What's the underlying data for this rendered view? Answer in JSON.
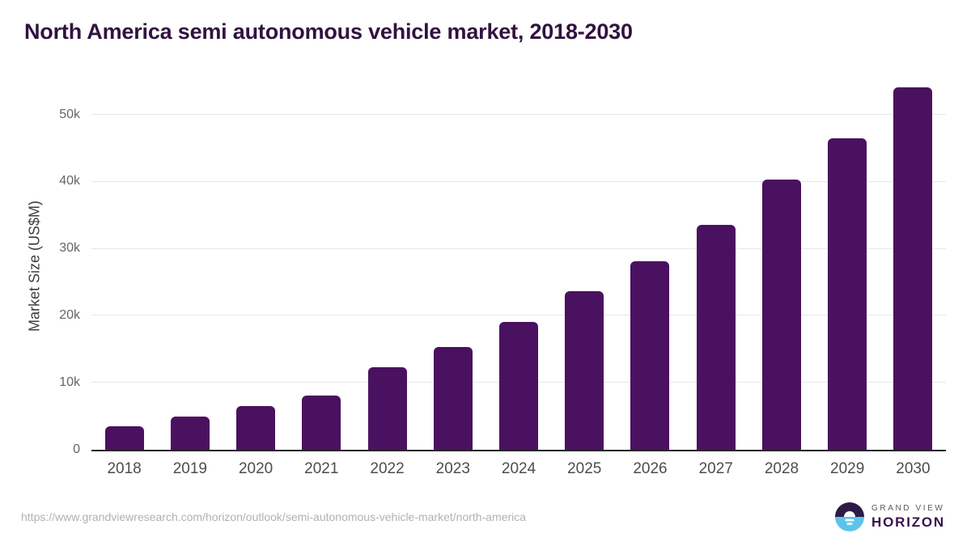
{
  "chart_data": {
    "type": "bar",
    "title": "North America semi autonomous vehicle market, 2018-2030",
    "ylabel": "Market Size (US$M)",
    "xlabel": "",
    "categories": [
      "2018",
      "2019",
      "2020",
      "2021",
      "2022",
      "2023",
      "2024",
      "2025",
      "2026",
      "2027",
      "2028",
      "2029",
      "2030"
    ],
    "values": [
      3500,
      4900,
      6500,
      8100,
      12300,
      15400,
      19100,
      23700,
      28200,
      33600,
      40300,
      46500,
      54100
    ],
    "ylim": [
      0,
      55000
    ],
    "yticks": [
      {
        "value": 0,
        "label": "0"
      },
      {
        "value": 10000,
        "label": "10k"
      },
      {
        "value": 20000,
        "label": "20k"
      },
      {
        "value": 30000,
        "label": "30k"
      },
      {
        "value": 40000,
        "label": "40k"
      },
      {
        "value": 50000,
        "label": "50k"
      }
    ],
    "grid": true,
    "legend_position": "none",
    "bar_color": "#4a1160"
  },
  "footer": {
    "source_url": "https://www.grandviewresearch.com/horizon/outlook/semi-autonomous-vehicle-market/north-america",
    "logo": {
      "top_text": "GRAND VIEW",
      "bottom_text": "HORIZON"
    }
  },
  "colors": {
    "bar": "#4a1160",
    "title": "#311240",
    "axis_line": "#262626",
    "gridline": "#e7e7e7",
    "y_tick_text": "#666666",
    "x_tick_text": "#4d4d4d",
    "source_text": "#b1b1b1",
    "logo_gray": "#58595b",
    "logo_purple": "#39114e",
    "logo_blue": "#5ec3ea",
    "logo_dark": "#2e1a47"
  }
}
